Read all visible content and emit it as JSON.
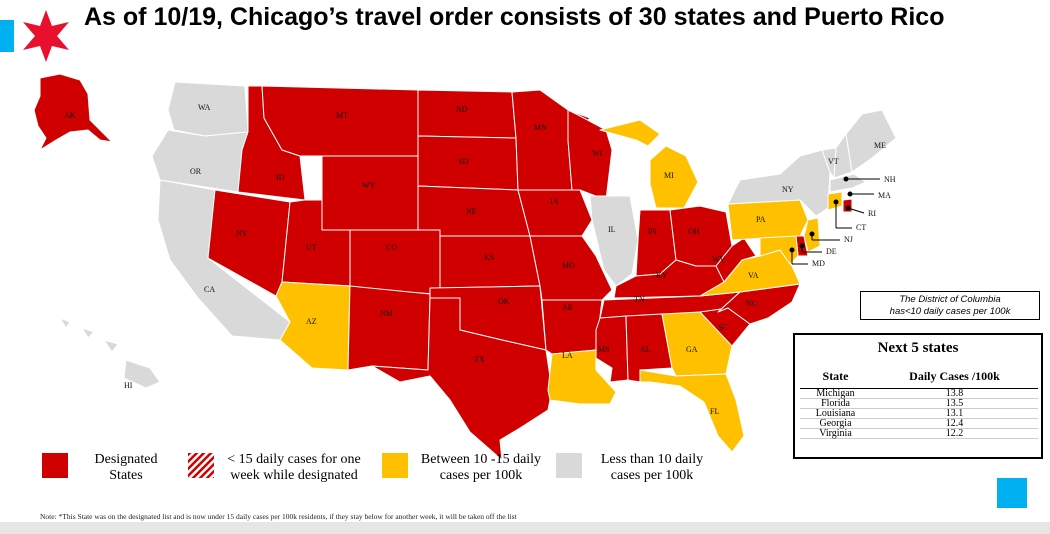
{
  "title": "As of 10/19, Chicago’s travel order consists of 30 states and Puerto Rico",
  "colors": {
    "designated": "#d00000",
    "between": "#ffc000",
    "less": "#d9d9d9",
    "accent": "#00b0f0"
  },
  "icons": {
    "logo": "red-six-pointed-star-icon"
  },
  "states": {
    "AK": {
      "label": "AK",
      "cat": "designated"
    },
    "HI": {
      "label": "HI",
      "cat": "less"
    },
    "WA": {
      "label": "WA",
      "cat": "less"
    },
    "OR": {
      "label": "OR",
      "cat": "less"
    },
    "CA": {
      "label": "CA",
      "cat": "less"
    },
    "ID": {
      "label": "ID",
      "cat": "designated"
    },
    "NV": {
      "label": "NV",
      "cat": "designated"
    },
    "MT": {
      "label": "MT",
      "cat": "designated"
    },
    "WY": {
      "label": "WY",
      "cat": "designated"
    },
    "UT": {
      "label": "UT",
      "cat": "designated"
    },
    "CO": {
      "label": "CO",
      "cat": "designated"
    },
    "AZ": {
      "label": "AZ",
      "cat": "between"
    },
    "NM": {
      "label": "NM",
      "cat": "designated"
    },
    "ND": {
      "label": "ND",
      "cat": "designated"
    },
    "SD": {
      "label": "SD",
      "cat": "designated"
    },
    "NE": {
      "label": "NE",
      "cat": "designated"
    },
    "KS": {
      "label": "KS",
      "cat": "designated"
    },
    "OK": {
      "label": "OK",
      "cat": "designated"
    },
    "TX": {
      "label": "TX",
      "cat": "designated"
    },
    "MN": {
      "label": "MN",
      "cat": "designated"
    },
    "IA": {
      "label": "IA",
      "cat": "designated"
    },
    "MO": {
      "label": "MO",
      "cat": "designated"
    },
    "AR": {
      "label": "AR",
      "cat": "designated"
    },
    "LA": {
      "label": "LA",
      "cat": "between"
    },
    "WI": {
      "label": "WI",
      "cat": "designated"
    },
    "IL": {
      "label": "IL",
      "cat": "less"
    },
    "MI": {
      "label": "MI",
      "cat": "between"
    },
    "IN": {
      "label": "IN",
      "cat": "designated"
    },
    "OH": {
      "label": "OH",
      "cat": "designated"
    },
    "KY": {
      "label": "KY",
      "cat": "designated"
    },
    "TN": {
      "label": "TN",
      "cat": "designated"
    },
    "MS": {
      "label": "MS",
      "cat": "designated"
    },
    "AL": {
      "label": "AL",
      "cat": "designated"
    },
    "GA": {
      "label": "GA",
      "cat": "between"
    },
    "FL": {
      "label": "FL",
      "cat": "between"
    },
    "SC": {
      "label": "SC",
      "cat": "designated"
    },
    "NC": {
      "label": "NC",
      "cat": "designated"
    },
    "VA": {
      "label": "VA",
      "cat": "between"
    },
    "WV": {
      "label": "WV",
      "cat": "designated"
    },
    "PA": {
      "label": "PA",
      "cat": "between"
    },
    "NY": {
      "label": "NY",
      "cat": "less"
    },
    "VT": {
      "label": "VT",
      "cat": "less"
    },
    "NH": {
      "label": "NH",
      "cat": "less"
    },
    "ME": {
      "label": "ME",
      "cat": "less"
    },
    "MA": {
      "label": "MA",
      "cat": "less"
    },
    "RI": {
      "label": "RI",
      "cat": "designated"
    },
    "CT": {
      "label": "CT",
      "cat": "between"
    },
    "NJ": {
      "label": "NJ",
      "cat": "between"
    },
    "DE": {
      "label": "DE",
      "cat": "designated"
    },
    "MD": {
      "label": "MD",
      "cat": "between"
    }
  },
  "dc_note": {
    "line1": "The District of Columbia",
    "line2": "has<10 daily cases per 100k"
  },
  "next5": {
    "title": "Next 5 states",
    "col_state": "State",
    "col_cases": "Daily Cases /100k",
    "rows": [
      {
        "state": "Michigan",
        "cases": "13.8"
      },
      {
        "state": "Florida",
        "cases": "13.5"
      },
      {
        "state": "Louisiana",
        "cases": "13.1"
      },
      {
        "state": "Georgia",
        "cases": "12.4"
      },
      {
        "state": "Virginia",
        "cases": "12.2"
      }
    ]
  },
  "legend": {
    "designated_line1": "Designated",
    "designated_line2": "States",
    "hatched_line1": "< 15 daily cases for one",
    "hatched_line2": "week while designated",
    "between_line1": "Between 10 -15 daily",
    "between_line2": "cases per 100k",
    "less_line1": "Less than 10 daily",
    "less_line2": "cases per 100k"
  },
  "note": "Note: *This State was on the designated list and is now under 15 daily cases per 100k residents, if they stay below for another week, it will be taken off the list"
}
